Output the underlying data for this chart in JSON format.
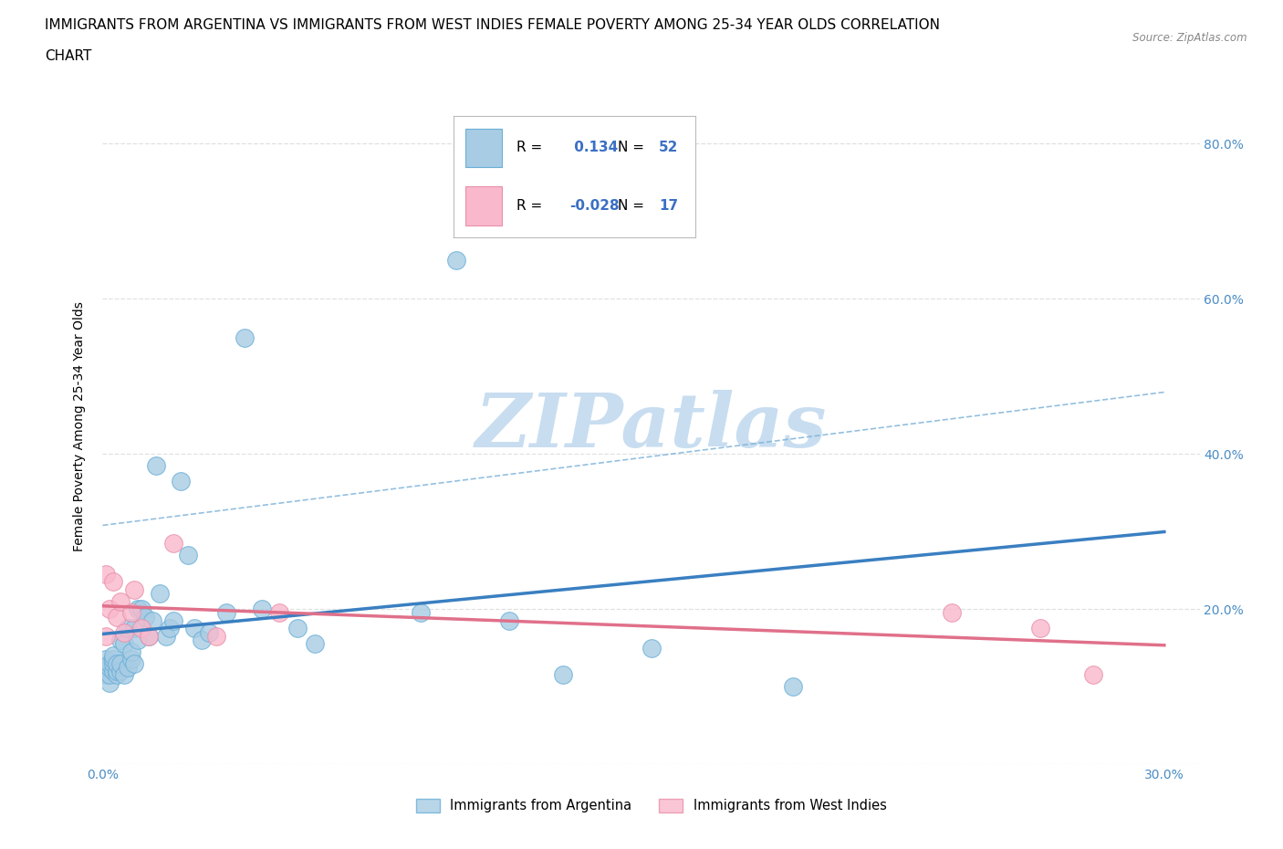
{
  "title_line1": "IMMIGRANTS FROM ARGENTINA VS IMMIGRANTS FROM WEST INDIES FEMALE POVERTY AMONG 25-34 YEAR OLDS CORRELATION",
  "title_line2": "CHART",
  "source_text": "Source: ZipAtlas.com",
  "ylabel": "Female Poverty Among 25-34 Year Olds",
  "xlim": [
    0.0,
    0.31
  ],
  "ylim": [
    0.0,
    0.87
  ],
  "argentina_color": "#a8cce4",
  "argentina_edge": "#6aafd6",
  "west_indies_color": "#f9b8cc",
  "west_indies_edge": "#e890aa",
  "argentina_R": 0.134,
  "argentina_N": 52,
  "west_indies_R": -0.028,
  "west_indies_N": 17,
  "line_argentina_color": "#3a7fc1",
  "line_west_indies_color": "#e0708a",
  "ci_color": "#7ab0d8",
  "grid_color": "#e0e0e0",
  "background_color": "#ffffff",
  "legend_text_color": "#3a6fc4",
  "title_fontsize": 11,
  "axis_label_fontsize": 10,
  "tick_fontsize": 10,
  "argentina_x": [
    0.001,
    0.001,
    0.001,
    0.002,
    0.002,
    0.002,
    0.002,
    0.003,
    0.003,
    0.003,
    0.003,
    0.004,
    0.004,
    0.004,
    0.005,
    0.005,
    0.005,
    0.006,
    0.006,
    0.007,
    0.007,
    0.008,
    0.008,
    0.009,
    0.009,
    0.01,
    0.01,
    0.011,
    0.012,
    0.013,
    0.014,
    0.015,
    0.016,
    0.018,
    0.019,
    0.02,
    0.022,
    0.024,
    0.026,
    0.028,
    0.03,
    0.035,
    0.04,
    0.045,
    0.055,
    0.06,
    0.09,
    0.1,
    0.115,
    0.13,
    0.155,
    0.195
  ],
  "argentina_y": [
    0.115,
    0.125,
    0.135,
    0.105,
    0.115,
    0.125,
    0.13,
    0.12,
    0.13,
    0.135,
    0.14,
    0.115,
    0.12,
    0.13,
    0.12,
    0.13,
    0.16,
    0.115,
    0.155,
    0.125,
    0.175,
    0.135,
    0.145,
    0.13,
    0.175,
    0.16,
    0.2,
    0.2,
    0.19,
    0.165,
    0.185,
    0.385,
    0.22,
    0.165,
    0.175,
    0.185,
    0.365,
    0.27,
    0.175,
    0.16,
    0.17,
    0.195,
    0.55,
    0.2,
    0.175,
    0.155,
    0.195,
    0.65,
    0.185,
    0.115,
    0.15,
    0.1
  ],
  "west_indies_x": [
    0.001,
    0.001,
    0.002,
    0.003,
    0.004,
    0.005,
    0.006,
    0.008,
    0.009,
    0.011,
    0.013,
    0.02,
    0.032,
    0.05,
    0.24,
    0.265,
    0.28
  ],
  "west_indies_y": [
    0.245,
    0.165,
    0.2,
    0.235,
    0.19,
    0.21,
    0.17,
    0.195,
    0.225,
    0.175,
    0.165,
    0.285,
    0.165,
    0.195,
    0.195,
    0.175,
    0.115
  ]
}
